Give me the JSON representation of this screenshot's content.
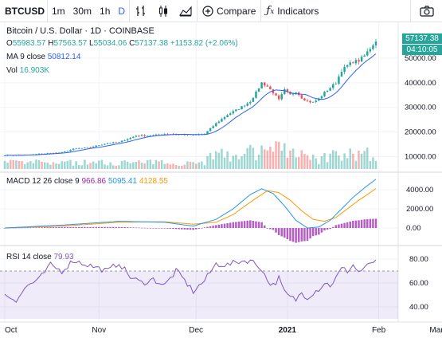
{
  "toolbar": {
    "symbol": "BTCUSD",
    "intervals": [
      "1m",
      "30m",
      "1h",
      "D"
    ],
    "active_interval": "D",
    "compare_label": "Compare",
    "indicators_label": "Indicators",
    "icons": [
      "bar-style-icon",
      "candles-icon",
      "area-style-icon",
      "plus-circle-icon",
      "fx-icon",
      "camera-icon"
    ]
  },
  "legend": {
    "title": "Bitcoin / U.S. Dollar · 1D · COINBASE",
    "ohlc": {
      "o_label": "O",
      "o": "55983.57",
      "h_label": "H",
      "h": "57563.57",
      "l_label": "L",
      "l": "55034.06",
      "c_label": "C",
      "c": "57137.38",
      "change": "+1153.82 (+2.06%)"
    },
    "ma_label": "MA 9 close",
    "ma_value": "50812.14",
    "vol_label": "Vol",
    "vol_value": "16.903K",
    "macd_label": "MACD 12 26 close 9",
    "macd_hist": "966.86",
    "macd_line": "5095.41",
    "macd_signal": "4128.55",
    "rsi_label": "RSI 14 close",
    "rsi_value": "79.93"
  },
  "price_tags": {
    "last": "57137.38",
    "countdown": "04:10:05"
  },
  "colors": {
    "up": "#26a69a",
    "down": "#ef5350",
    "ma": "#2962ff",
    "macd": "#2196f3",
    "signal": "#ff9800",
    "hist": "#9c27b0",
    "rsi": "#7e57c2"
  },
  "chart_data": [
    {
      "type": "candlestick",
      "title": "Bitcoin / U.S. Dollar · 1D · COINBASE",
      "x_ticks": [
        "Oct",
        "Nov",
        "Dec",
        "2021",
        "Feb",
        "Mar"
      ],
      "y_ticks": [
        10000,
        20000,
        30000,
        40000,
        50000
      ],
      "ylim": [
        5000,
        60000
      ],
      "series": [
        {
          "name": "MA 9 close",
          "last": 50812.14
        },
        {
          "name": "Vol",
          "last": "16.903K"
        }
      ],
      "close_anchors": [
        [
          0,
          10600
        ],
        [
          8,
          10700
        ],
        [
          14,
          11300
        ],
        [
          20,
          11700
        ],
        [
          24,
          13100
        ],
        [
          30,
          13800
        ],
        [
          36,
          15500
        ],
        [
          40,
          15900
        ],
        [
          46,
          18500
        ],
        [
          52,
          18600
        ],
        [
          56,
          19300
        ],
        [
          60,
          19100
        ],
        [
          66,
          18800
        ],
        [
          70,
          19200
        ],
        [
          74,
          23500
        ],
        [
          78,
          27000
        ],
        [
          82,
          29500
        ],
        [
          86,
          32500
        ],
        [
          88,
          36000
        ],
        [
          90,
          40000
        ],
        [
          92,
          38500
        ],
        [
          94,
          36000
        ],
        [
          96,
          33000
        ],
        [
          98,
          37000
        ],
        [
          100,
          35000
        ],
        [
          102,
          36500
        ],
        [
          104,
          34000
        ],
        [
          106,
          32500
        ],
        [
          108,
          32000
        ],
        [
          110,
          33500
        ],
        [
          112,
          36000
        ],
        [
          114,
          38000
        ],
        [
          116,
          40000
        ],
        [
          118,
          45000
        ],
        [
          120,
          47000
        ],
        [
          122,
          48500
        ],
        [
          124,
          49000
        ],
        [
          126,
          51000
        ],
        [
          128,
          54000
        ],
        [
          130,
          57137
        ]
      ]
    },
    {
      "type": "line",
      "title": "MACD 12 26 close 9",
      "y_ticks": [
        0,
        2000,
        4000
      ],
      "series": [
        {
          "name": "MACD",
          "last": 5095.41,
          "anchors": [
            [
              0,
              0
            ],
            [
              20,
              300
            ],
            [
              40,
              700
            ],
            [
              56,
              600
            ],
            [
              66,
              200
            ],
            [
              74,
              900
            ],
            [
              80,
              2000
            ],
            [
              86,
              3500
            ],
            [
              90,
              4100
            ],
            [
              94,
              3600
            ],
            [
              98,
              2300
            ],
            [
              102,
              800
            ],
            [
              106,
              0
            ],
            [
              110,
              100
            ],
            [
              114,
              800
            ],
            [
              118,
              2000
            ],
            [
              122,
              3200
            ],
            [
              126,
              4200
            ],
            [
              130,
              5095
            ]
          ]
        },
        {
          "name": "Signal",
          "last": 4128.55,
          "anchors": [
            [
              0,
              0
            ],
            [
              20,
              200
            ],
            [
              40,
              600
            ],
            [
              56,
              650
            ],
            [
              66,
              400
            ],
            [
              74,
              600
            ],
            [
              80,
              1400
            ],
            [
              86,
              2700
            ],
            [
              92,
              3900
            ],
            [
              96,
              3700
            ],
            [
              100,
              2900
            ],
            [
              104,
              1800
            ],
            [
              108,
              900
            ],
            [
              112,
              700
            ],
            [
              116,
              1100
            ],
            [
              120,
              2000
            ],
            [
              124,
              2900
            ],
            [
              128,
              3700
            ],
            [
              130,
              4128
            ]
          ]
        },
        {
          "name": "Histogram",
          "last": 966.86
        }
      ]
    },
    {
      "type": "line",
      "title": "RSI 14 close",
      "y_ticks": [
        40,
        60,
        80
      ],
      "ylim": [
        30,
        90
      ],
      "band": [
        30,
        70
      ],
      "series": [
        {
          "name": "RSI 14 close",
          "last": 79.93,
          "anchors": [
            [
              0,
              50
            ],
            [
              4,
              46
            ],
            [
              8,
              58
            ],
            [
              12,
              63
            ],
            [
              16,
              75
            ],
            [
              20,
              70
            ],
            [
              24,
              79
            ],
            [
              28,
              76
            ],
            [
              32,
              73
            ],
            [
              36,
              70
            ],
            [
              40,
              77
            ],
            [
              44,
              65
            ],
            [
              48,
              60
            ],
            [
              52,
              63
            ],
            [
              56,
              58
            ],
            [
              60,
              70
            ],
            [
              62,
              65
            ],
            [
              66,
              53
            ],
            [
              70,
              62
            ],
            [
              74,
              76
            ],
            [
              78,
              75
            ],
            [
              82,
              78
            ],
            [
              86,
              79
            ],
            [
              90,
              72
            ],
            [
              92,
              62
            ],
            [
              94,
              58
            ],
            [
              96,
              64
            ],
            [
              98,
              52
            ],
            [
              100,
              48
            ],
            [
              102,
              46
            ],
            [
              104,
              52
            ],
            [
              106,
              48
            ],
            [
              108,
              52
            ],
            [
              110,
              55
            ],
            [
              112,
              60
            ],
            [
              114,
              58
            ],
            [
              116,
              64
            ],
            [
              118,
              72
            ],
            [
              120,
              70
            ],
            [
              122,
              75
            ],
            [
              124,
              69
            ],
            [
              126,
              73
            ],
            [
              128,
              75
            ],
            [
              130,
              80
            ]
          ]
        }
      ]
    }
  ]
}
